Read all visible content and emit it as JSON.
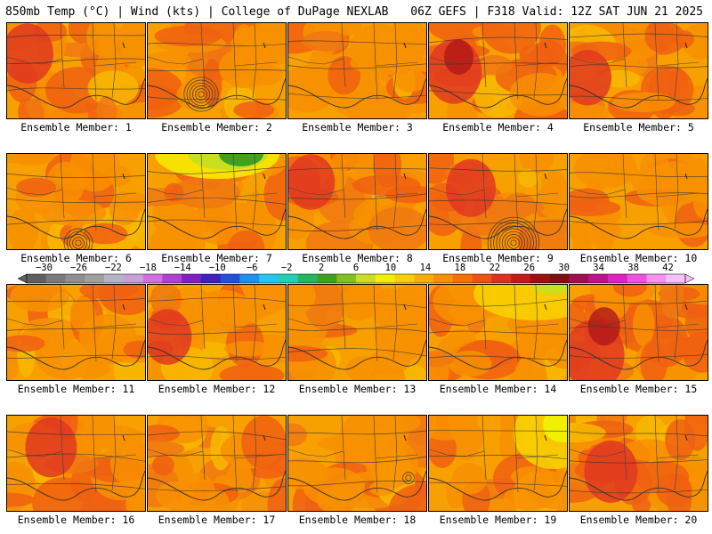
{
  "header": {
    "left": "850mb Temp (°C) | Wind (kts) | College of DuPage NEXLAB",
    "right": "06Z GEFS | F318 Valid: 12Z SAT JUN 21 2025"
  },
  "colorbar": {
    "ticks": [
      "−30",
      "−26",
      "−22",
      "−18",
      "−14",
      "−10",
      "−6",
      "−2",
      "2",
      "6",
      "10",
      "14",
      "18",
      "22",
      "26",
      "30",
      "34",
      "38",
      "42"
    ],
    "range": [
      -32,
      44
    ],
    "colors": [
      "#606060",
      "#7a7a7a",
      "#8f8f8f",
      "#a0a0a0",
      "#b4b4c8",
      "#c8a0d8",
      "#d070e0",
      "#b040d0",
      "#8020c0",
      "#4020c0",
      "#2050e0",
      "#2090f0",
      "#20c8f0",
      "#20d0b0",
      "#20b860",
      "#40a020",
      "#80c020",
      "#c8e020",
      "#f0f000",
      "#f8d000",
      "#f8b000",
      "#f89000",
      "#f87000",
      "#f05010",
      "#e03020",
      "#c81818",
      "#a01010",
      "#801010",
      "#a01050",
      "#c01090",
      "#e020c0",
      "#f050e0",
      "#f890f0",
      "#f8c0f8"
    ]
  },
  "panels": [
    {
      "label": "Ensemble Member: 1"
    },
    {
      "label": "Ensemble Member: 2"
    },
    {
      "label": "Ensemble Member: 3"
    },
    {
      "label": "Ensemble Member: 4"
    },
    {
      "label": "Ensemble Member: 5"
    },
    {
      "label": "Ensemble Member: 6"
    },
    {
      "label": "Ensemble Member: 7"
    },
    {
      "label": "Ensemble Member: 8"
    },
    {
      "label": "Ensemble Member: 9"
    },
    {
      "label": "Ensemble Member: 10"
    },
    {
      "label": "Ensemble Member: 11"
    },
    {
      "label": "Ensemble Member: 12"
    },
    {
      "label": "Ensemble Member: 13"
    },
    {
      "label": "Ensemble Member: 14"
    },
    {
      "label": "Ensemble Member: 15"
    },
    {
      "label": "Ensemble Member: 16"
    },
    {
      "label": "Ensemble Member: 17"
    },
    {
      "label": "Ensemble Member: 18"
    },
    {
      "label": "Ensemble Member: 19"
    },
    {
      "label": "Ensemble Member: 20"
    }
  ]
}
